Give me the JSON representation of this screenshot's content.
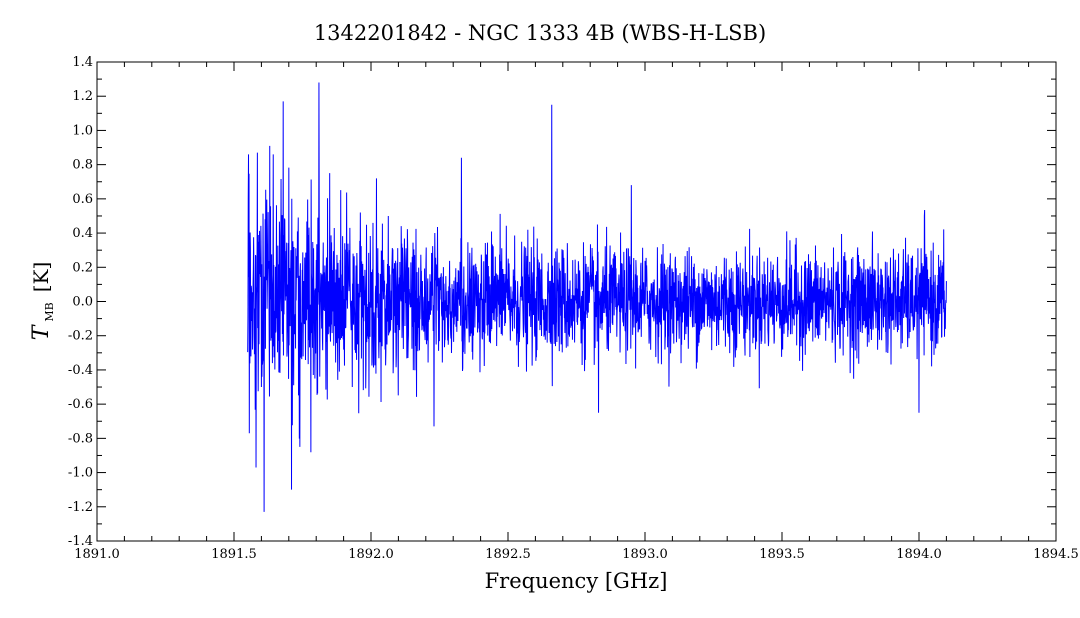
{
  "chart_data": {
    "type": "line",
    "title": "1342201842 - NGC 1333 4B (WBS-H-LSB)",
    "xlabel": "Frequency [GHz]",
    "ylabel": {
      "symbol": "T",
      "subscript": "MB",
      "unit": "[K]"
    },
    "xlim": [
      1891.0,
      1894.5
    ],
    "ylim": [
      -1.4,
      1.4
    ],
    "x_ticks": [
      1891.0,
      1891.5,
      1892.0,
      1892.5,
      1893.0,
      1893.5,
      1894.0,
      1894.5
    ],
    "x_tick_labels": [
      "1891.0",
      "1891.5",
      "1892.0",
      "1892.5",
      "1893.0",
      "1893.5",
      "1894.0",
      "1894.5"
    ],
    "y_ticks": [
      -1.4,
      -1.2,
      -1.0,
      -0.8,
      -0.6,
      -0.4,
      -0.2,
      0.0,
      0.2,
      0.4,
      0.6,
      0.8,
      1.0,
      1.2,
      1.4
    ],
    "y_tick_labels": [
      "-1.4",
      "-1.2",
      "-1.0",
      "-0.8",
      "-0.6",
      "-0.4",
      "-0.2",
      "0.0",
      "0.2",
      "0.4",
      "0.6",
      "0.8",
      "1.0",
      "1.2",
      "1.4"
    ],
    "grid": false,
    "line_color": "#0000ff",
    "series": [
      {
        "x_start": 1891.55,
        "x_end": 1894.1,
        "noise_profile": [
          {
            "x": 1891.55,
            "rms": 0.3
          },
          {
            "x": 1891.9,
            "rms": 0.25
          },
          {
            "x": 1892.3,
            "rms": 0.18
          },
          {
            "x": 1893.0,
            "rms": 0.15
          },
          {
            "x": 1894.1,
            "rms": 0.15
          }
        ],
        "extremes": [
          {
            "x": 1891.553,
            "y": 0.86
          },
          {
            "x": 1891.556,
            "y": -0.77
          },
          {
            "x": 1891.58,
            "y": -0.97
          },
          {
            "x": 1891.585,
            "y": 0.87
          },
          {
            "x": 1891.61,
            "y": -1.23
          },
          {
            "x": 1891.63,
            "y": 0.91
          },
          {
            "x": 1891.68,
            "y": 1.17
          },
          {
            "x": 1891.71,
            "y": -1.1
          },
          {
            "x": 1891.81,
            "y": 1.28
          },
          {
            "x": 1891.74,
            "y": -0.85
          },
          {
            "x": 1892.02,
            "y": 0.72
          },
          {
            "x": 1892.33,
            "y": 0.84
          },
          {
            "x": 1892.66,
            "y": 1.15
          },
          {
            "x": 1892.23,
            "y": -0.73
          },
          {
            "x": 1892.83,
            "y": -0.65
          },
          {
            "x": 1892.95,
            "y": 0.68
          },
          {
            "x": 1894.0,
            "y": -0.65
          },
          {
            "x": 1894.02,
            "y": -0.68
          },
          {
            "x": 1894.02,
            "y": 0.5
          }
        ]
      }
    ]
  }
}
